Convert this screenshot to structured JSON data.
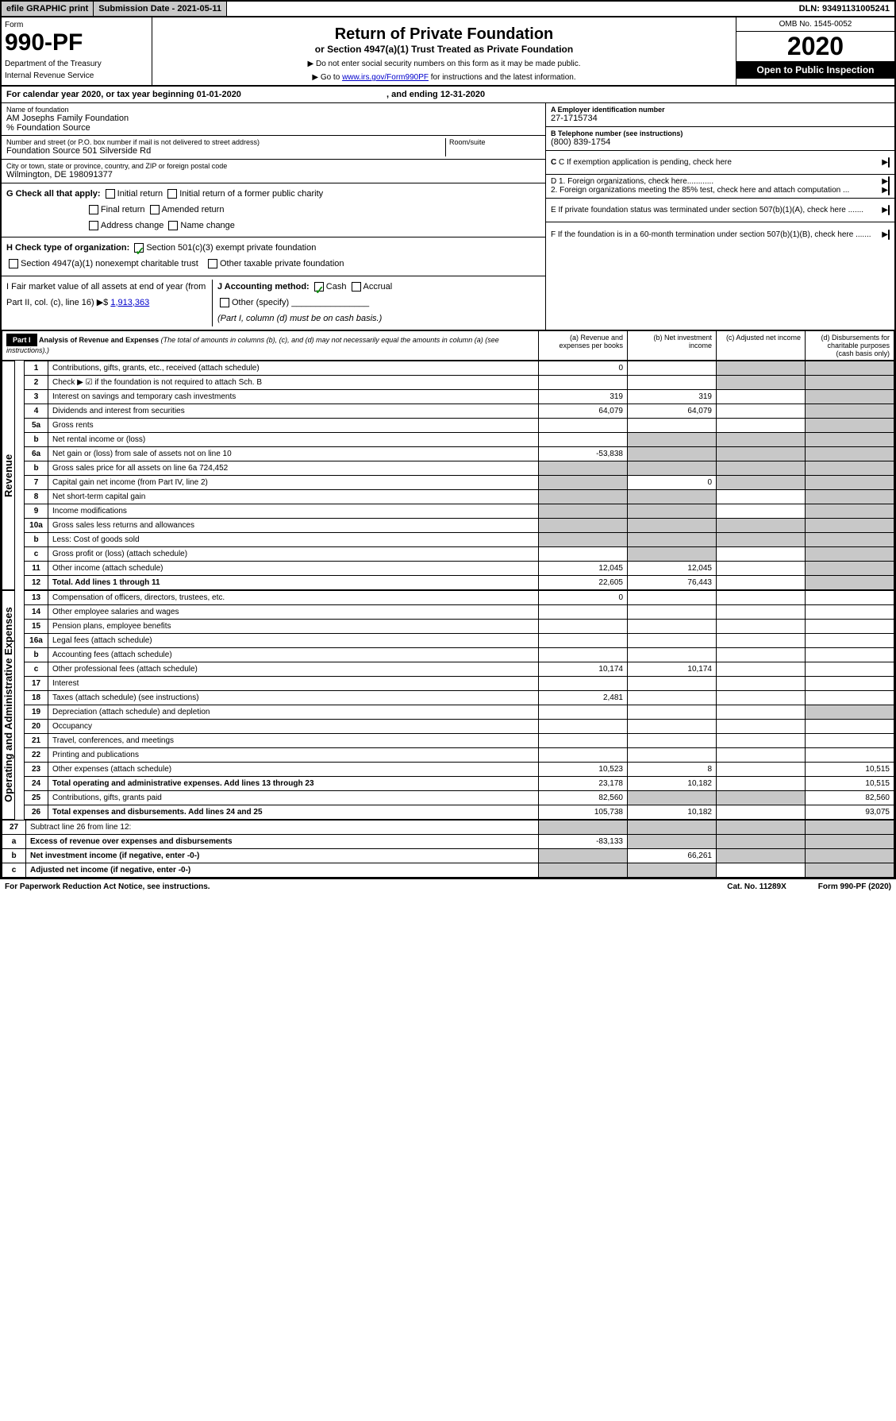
{
  "top_bar": {
    "efile": "efile GRAPHIC print",
    "sub_label": "Submission Date - 2021-05-11",
    "dln": "DLN: 93491131005241"
  },
  "header": {
    "form_label": "Form",
    "form_num": "990-PF",
    "dept1": "Department of the Treasury",
    "dept2": "Internal Revenue Service",
    "title": "Return of Private Foundation",
    "subtitle": "or Section 4947(a)(1) Trust Treated as Private Foundation",
    "note1": "▶ Do not enter social security numbers on this form as it may be made public.",
    "note2": "▶ Go to ",
    "note2_link": "www.irs.gov/Form990PF",
    "note2_after": " for instructions and the latest information.",
    "omb": "OMB No. 1545-0052",
    "year": "2020",
    "open": "Open to Public Inspection"
  },
  "cal_year": {
    "prefix": "For calendar year 2020, or tax year beginning ",
    "begin": "01-01-2020",
    "mid": " , and ending ",
    "end": "12-31-2020"
  },
  "info": {
    "name_label": "Name of foundation",
    "name": "AM Josephs Family Foundation",
    "care_of": "% Foundation Source",
    "addr_label": "Number and street (or P.O. box number if mail is not delivered to street address)",
    "addr": "Foundation Source 501 Silverside Rd",
    "room_label": "Room/suite",
    "city_label": "City or town, state or province, country, and ZIP or foreign postal code",
    "city": "Wilmington, DE  198091377",
    "a_label": "A Employer identification number",
    "a_val": "27-1715734",
    "b_label": "B Telephone number (see instructions)",
    "b_val": "(800) 839-1754",
    "c_label": "C If exemption application is pending, check here",
    "d1": "D 1. Foreign organizations, check here............",
    "d2": "2. Foreign organizations meeting the 85% test, check here and attach computation ...",
    "e_label": "E If private foundation status was terminated under section 507(b)(1)(A), check here .......",
    "f_label": "F If the foundation is in a 60-month termination under section 507(b)(1)(B), check here ......."
  },
  "checks": {
    "g_label": "G Check all that apply:",
    "g1": "Initial return",
    "g2": "Initial return of a former public charity",
    "g3": "Final return",
    "g4": "Amended return",
    "g5": "Address change",
    "g6": "Name change",
    "h_label": "H Check type of organization:",
    "h1": "Section 501(c)(3) exempt private foundation",
    "h2": "Section 4947(a)(1) nonexempt charitable trust",
    "h3": "Other taxable private foundation",
    "i_label": "I Fair market value of all assets at end of year (from Part II, col. (c), line 16) ▶$ ",
    "i_val": "1,913,363",
    "j_label": "J Accounting method:",
    "j1": "Cash",
    "j2": "Accrual",
    "j3": "Other (specify)",
    "j_note": "(Part I, column (d) must be on cash basis.)"
  },
  "part1": {
    "label": "Part I",
    "title": "Analysis of Revenue and Expenses",
    "desc": "(The total of amounts in columns (b), (c), and (d) may not necessarily equal the amounts in column (a) (see instructions).)",
    "col_a": "(a) Revenue and expenses per books",
    "col_b": "(b) Net investment income",
    "col_c": "(c) Adjusted net income",
    "col_d": "(d) Disbursements for charitable purposes (cash basis only)"
  },
  "rows": [
    {
      "n": "1",
      "d": "Contributions, gifts, grants, etc., received (attach schedule)",
      "a": "0",
      "b": "",
      "c": "s",
      "dd": "s"
    },
    {
      "n": "2",
      "d": "Check ▶ ☑ if the foundation is not required to attach Sch. B",
      "a": "",
      "b": "",
      "c": "s",
      "dd": "s"
    },
    {
      "n": "3",
      "d": "Interest on savings and temporary cash investments",
      "a": "319",
      "b": "319",
      "c": "",
      "dd": "s"
    },
    {
      "n": "4",
      "d": "Dividends and interest from securities",
      "a": "64,079",
      "b": "64,079",
      "c": "",
      "dd": "s"
    },
    {
      "n": "5a",
      "d": "Gross rents",
      "a": "",
      "b": "",
      "c": "",
      "dd": "s"
    },
    {
      "n": "b",
      "d": "Net rental income or (loss)",
      "a": "",
      "b": "s",
      "c": "s",
      "dd": "s"
    },
    {
      "n": "6a",
      "d": "Net gain or (loss) from sale of assets not on line 10",
      "a": "-53,838",
      "b": "s",
      "c": "s",
      "dd": "s"
    },
    {
      "n": "b",
      "d": "Gross sales price for all assets on line 6a  724,452",
      "a": "s",
      "b": "s",
      "c": "s",
      "dd": "s"
    },
    {
      "n": "7",
      "d": "Capital gain net income (from Part IV, line 2)",
      "a": "s",
      "b": "0",
      "c": "s",
      "dd": "s"
    },
    {
      "n": "8",
      "d": "Net short-term capital gain",
      "a": "s",
      "b": "s",
      "c": "",
      "dd": "s"
    },
    {
      "n": "9",
      "d": "Income modifications",
      "a": "s",
      "b": "s",
      "c": "",
      "dd": "s"
    },
    {
      "n": "10a",
      "d": "Gross sales less returns and allowances",
      "a": "s",
      "b": "s",
      "c": "s",
      "dd": "s"
    },
    {
      "n": "b",
      "d": "Less: Cost of goods sold",
      "a": "s",
      "b": "s",
      "c": "s",
      "dd": "s"
    },
    {
      "n": "c",
      "d": "Gross profit or (loss) (attach schedule)",
      "a": "",
      "b": "s",
      "c": "",
      "dd": "s"
    },
    {
      "n": "11",
      "d": "Other income (attach schedule)",
      "a": "12,045",
      "b": "12,045",
      "c": "",
      "dd": "s"
    },
    {
      "n": "12",
      "d": "Total. Add lines 1 through 11",
      "a": "22,605",
      "b": "76,443",
      "c": "",
      "dd": "s",
      "bold": true
    }
  ],
  "exp_rows": [
    {
      "n": "13",
      "d": "Compensation of officers, directors, trustees, etc.",
      "a": "0",
      "b": "",
      "c": "",
      "dd": ""
    },
    {
      "n": "14",
      "d": "Other employee salaries and wages",
      "a": "",
      "b": "",
      "c": "",
      "dd": ""
    },
    {
      "n": "15",
      "d": "Pension plans, employee benefits",
      "a": "",
      "b": "",
      "c": "",
      "dd": ""
    },
    {
      "n": "16a",
      "d": "Legal fees (attach schedule)",
      "a": "",
      "b": "",
      "c": "",
      "dd": ""
    },
    {
      "n": "b",
      "d": "Accounting fees (attach schedule)",
      "a": "",
      "b": "",
      "c": "",
      "dd": ""
    },
    {
      "n": "c",
      "d": "Other professional fees (attach schedule)",
      "a": "10,174",
      "b": "10,174",
      "c": "",
      "dd": ""
    },
    {
      "n": "17",
      "d": "Interest",
      "a": "",
      "b": "",
      "c": "",
      "dd": ""
    },
    {
      "n": "18",
      "d": "Taxes (attach schedule) (see instructions)",
      "a": "2,481",
      "b": "",
      "c": "",
      "dd": ""
    },
    {
      "n": "19",
      "d": "Depreciation (attach schedule) and depletion",
      "a": "",
      "b": "",
      "c": "",
      "dd": "s"
    },
    {
      "n": "20",
      "d": "Occupancy",
      "a": "",
      "b": "",
      "c": "",
      "dd": ""
    },
    {
      "n": "21",
      "d": "Travel, conferences, and meetings",
      "a": "",
      "b": "",
      "c": "",
      "dd": ""
    },
    {
      "n": "22",
      "d": "Printing and publications",
      "a": "",
      "b": "",
      "c": "",
      "dd": ""
    },
    {
      "n": "23",
      "d": "Other expenses (attach schedule)",
      "a": "10,523",
      "b": "8",
      "c": "",
      "dd": "10,515"
    },
    {
      "n": "24",
      "d": "Total operating and administrative expenses. Add lines 13 through 23",
      "a": "23,178",
      "b": "10,182",
      "c": "",
      "dd": "10,515",
      "bold": true
    },
    {
      "n": "25",
      "d": "Contributions, gifts, grants paid",
      "a": "82,560",
      "b": "s",
      "c": "s",
      "dd": "82,560"
    },
    {
      "n": "26",
      "d": "Total expenses and disbursements. Add lines 24 and 25",
      "a": "105,738",
      "b": "10,182",
      "c": "",
      "dd": "93,075",
      "bold": true
    }
  ],
  "final_rows": [
    {
      "n": "27",
      "d": "Subtract line 26 from line 12:",
      "a": "s",
      "b": "s",
      "c": "s",
      "dd": "s"
    },
    {
      "n": "a",
      "d": "Excess of revenue over expenses and disbursements",
      "a": "-83,133",
      "b": "s",
      "c": "s",
      "dd": "s",
      "bold": true
    },
    {
      "n": "b",
      "d": "Net investment income (if negative, enter -0-)",
      "a": "s",
      "b": "66,261",
      "c": "s",
      "dd": "s",
      "bold": true
    },
    {
      "n": "c",
      "d": "Adjusted net income (if negative, enter -0-)",
      "a": "s",
      "b": "s",
      "c": "",
      "dd": "s",
      "bold": true
    }
  ],
  "side_labels": {
    "revenue": "Revenue",
    "expenses": "Operating and Administrative Expenses"
  },
  "footer": {
    "left": "For Paperwork Reduction Act Notice, see instructions.",
    "mid": "Cat. No. 11289X",
    "right": "Form 990-PF (2020)"
  }
}
